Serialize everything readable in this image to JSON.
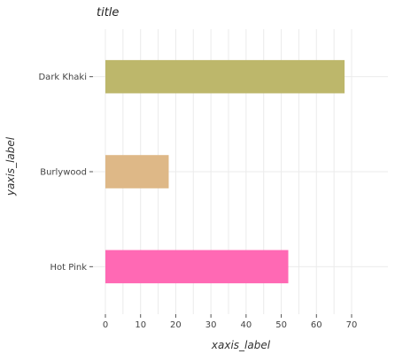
{
  "chart_data": {
    "type": "bar",
    "orientation": "horizontal",
    "title": "title",
    "xlabel": "xaxis_label",
    "ylabel": "yaxis_label",
    "categories": [
      "Hot Pink",
      "Burlywood",
      "Dark Khaki"
    ],
    "values": [
      52,
      18,
      68
    ],
    "colors": [
      "#ff69b4",
      "#deb887",
      "#bdb76b"
    ],
    "xlim": [
      0,
      70
    ],
    "xticks": [
      0,
      10,
      20,
      30,
      40,
      50,
      60,
      70
    ],
    "grid": true,
    "legend": "none"
  }
}
